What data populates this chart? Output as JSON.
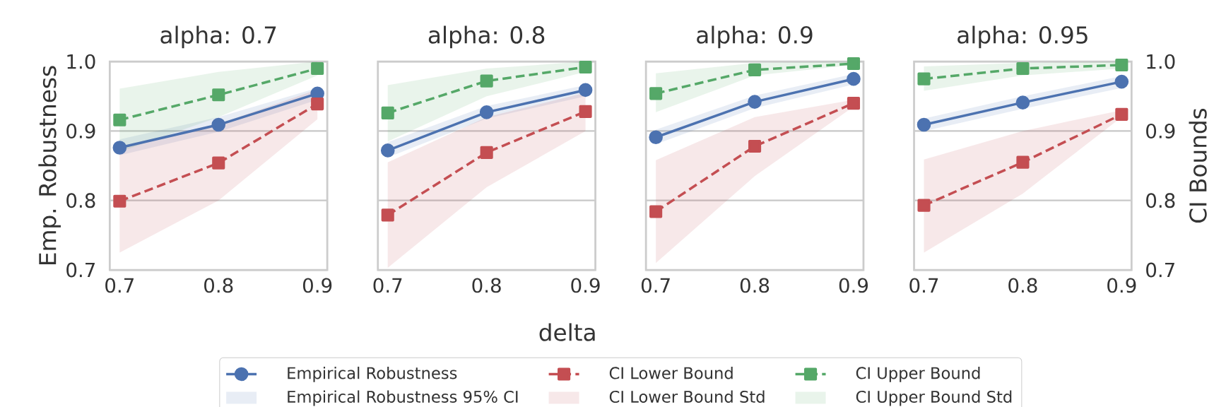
{
  "chart_data": [
    {
      "type": "line",
      "title": "alpha: 0.7",
      "ylabel": "Emp. Robustness",
      "legend": "bottom",
      "grid": "y",
      "x": [
        0.7,
        0.8,
        0.9
      ],
      "xlim": [
        0.69,
        0.91
      ],
      "xticks": [
        0.7,
        0.8,
        0.9
      ],
      "ylim": [
        0.7,
        1.0
      ],
      "yticks": [
        0.7,
        0.8,
        0.9,
        {
          "value": 1.0,
          "label": "1.0"
        }
      ],
      "annotations": [
        "Empirical Robustness 95% CI",
        "CI Lower Bound Std",
        "CI Upper Bound Std"
      ],
      "series": [
        {
          "name": "Empirical Robustness",
          "color": "#4c72b0",
          "marker": "circle",
          "line_style": "solid",
          "values": [
            0.876,
            0.909,
            0.954
          ],
          "lower": [
            0.865,
            0.899,
            0.945
          ],
          "upper": [
            0.888,
            0.92,
            0.962
          ]
        },
        {
          "name": "CI Lower Bound",
          "color": "#c44e52",
          "marker": "square",
          "line_style": "dashed",
          "values": [
            0.799,
            0.854,
            0.939
          ],
          "lower": [
            0.725,
            0.8,
            0.917
          ],
          "upper": [
            0.875,
            0.91,
            0.96
          ]
        },
        {
          "name": "CI Upper Bound",
          "color": "#55a868",
          "marker": "square",
          "line_style": "dashed",
          "values": [
            0.916,
            0.952,
            0.99
          ],
          "lower": [
            0.87,
            0.92,
            0.98
          ],
          "upper": [
            0.961,
            0.985,
            1.0
          ]
        }
      ]
    },
    {
      "type": "line",
      "title": "alpha: 0.8",
      "xlabel": "delta",
      "tick_labels": "x",
      "grid": "y",
      "x": [
        0.7,
        0.8,
        0.9
      ],
      "xlim": [
        0.69,
        0.91
      ],
      "xticks": [
        0.7,
        0.8,
        0.9
      ],
      "ylim": [
        0.7,
        1.0
      ],
      "yticks": [
        0.7,
        0.8,
        0.9,
        1.0
      ],
      "series": [
        {
          "color": "#4c72b0",
          "marker": "circle",
          "line_style": "solid",
          "values": [
            0.872,
            0.927,
            0.959
          ],
          "lower": [
            0.862,
            0.918,
            0.95
          ],
          "upper": [
            0.884,
            0.936,
            0.966
          ]
        },
        {
          "color": "#c44e52",
          "marker": "square",
          "line_style": "dashed",
          "values": [
            0.779,
            0.869,
            0.928
          ],
          "lower": [
            0.703,
            0.819,
            0.9
          ],
          "upper": [
            0.855,
            0.92,
            0.955
          ]
        },
        {
          "color": "#55a868",
          "marker": "square",
          "line_style": "dashed",
          "values": [
            0.926,
            0.972,
            0.992
          ],
          "lower": [
            0.885,
            0.95,
            0.985
          ],
          "upper": [
            0.966,
            0.99,
            1.0
          ]
        }
      ]
    },
    {
      "type": "line",
      "title": "alpha: 0.9",
      "tick_labels": "x",
      "grid": "y",
      "x": [
        0.7,
        0.8,
        0.9
      ],
      "xlim": [
        0.69,
        0.91
      ],
      "xticks": [
        0.7,
        0.8,
        0.9
      ],
      "ylim": [
        0.7,
        1.0
      ],
      "yticks": [
        0.7,
        0.8,
        0.9,
        1.0
      ],
      "series": [
        {
          "color": "#4c72b0",
          "marker": "circle",
          "line_style": "solid",
          "values": [
            0.891,
            0.942,
            0.975
          ],
          "lower": [
            0.881,
            0.933,
            0.967
          ],
          "upper": [
            0.902,
            0.951,
            0.982
          ]
        },
        {
          "color": "#c44e52",
          "marker": "square",
          "line_style": "dashed",
          "values": [
            0.784,
            0.878,
            0.94
          ],
          "lower": [
            0.71,
            0.835,
            0.935
          ],
          "upper": [
            0.858,
            0.92,
            0.945
          ]
        },
        {
          "color": "#55a868",
          "marker": "square",
          "line_style": "dashed",
          "values": [
            0.954,
            0.988,
            0.997
          ],
          "lower": [
            0.927,
            0.98,
            0.995
          ],
          "upper": [
            0.983,
            0.998,
            1.0
          ]
        }
      ]
    },
    {
      "type": "line",
      "title": "alpha: 0.95",
      "y2label": "CI Bounds",
      "grid": "y",
      "x": [
        0.7,
        0.8,
        0.9
      ],
      "xlim": [
        0.69,
        0.91
      ],
      "xticks": [
        0.7,
        0.8,
        0.9
      ],
      "y2lim": [
        0.7,
        1.0
      ],
      "y2ticks": [
        0.7,
        0.8,
        0.9,
        {
          "value": 1.0,
          "label": "1.0"
        }
      ],
      "series": [
        {
          "axis": "y2",
          "color": "#4c72b0",
          "marker": "circle",
          "line_style": "solid",
          "values": [
            0.909,
            0.941,
            0.971
          ],
          "lower": [
            0.9,
            0.932,
            0.962
          ],
          "upper": [
            0.918,
            0.95,
            0.979
          ]
        },
        {
          "axis": "y2",
          "color": "#c44e52",
          "marker": "square",
          "line_style": "dashed",
          "values": [
            0.793,
            0.855,
            0.924
          ],
          "lower": [
            0.725,
            0.81,
            0.92
          ],
          "upper": [
            0.859,
            0.9,
            0.93
          ]
        },
        {
          "axis": "y2",
          "color": "#55a868",
          "marker": "square",
          "line_style": "dashed",
          "values": [
            0.975,
            0.99,
            0.995
          ],
          "lower": [
            0.958,
            0.98,
            0.99
          ],
          "upper": [
            0.993,
            0.998,
            1.0
          ]
        }
      ]
    }
  ]
}
